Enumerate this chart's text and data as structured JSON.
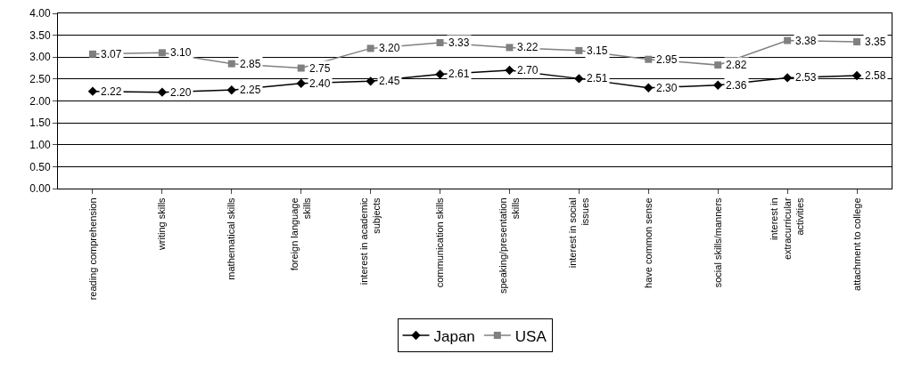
{
  "chart_data": {
    "type": "line",
    "categories": [
      "reading comprehension",
      "writing skills",
      "mathematical skills",
      "foreign language skills",
      "interest in academic subjects",
      "communication skills",
      "speaking/presentation skills",
      "interest in social issues",
      "have common sense",
      "social skills/manners",
      "interest in extracurricular activities",
      "attachment to college"
    ],
    "series": [
      {
        "name": "Japan",
        "color": "#000000",
        "marker": "diamond",
        "values": [
          2.22,
          2.2,
          2.25,
          2.4,
          2.45,
          2.61,
          2.7,
          2.51,
          2.3,
          2.36,
          2.53,
          2.58
        ],
        "value_labels": [
          "2.22",
          "2.20",
          "2.25",
          "2.40",
          "2.45",
          "2.61",
          "2.70",
          "2.51",
          "2.30",
          "2.36",
          "2.53",
          "2.58"
        ]
      },
      {
        "name": "USA",
        "color": "#808080",
        "marker": "square",
        "values": [
          3.07,
          3.1,
          2.85,
          2.75,
          3.2,
          3.33,
          3.22,
          3.15,
          2.95,
          2.82,
          3.38,
          3.35
        ],
        "value_labels": [
          "3.07",
          "3.10",
          "2.85",
          "2.75",
          "3.20",
          "3.33",
          "3.22",
          "3.15",
          "2.95",
          "2.82",
          "3.38",
          "3.35"
        ]
      }
    ],
    "ylim": [
      0,
      4
    ],
    "yticks": [
      {
        "value": 0,
        "label": "0.00"
      },
      {
        "value": 0.5,
        "label": "0.50"
      },
      {
        "value": 1,
        "label": "1.00"
      },
      {
        "value": 1.5,
        "label": "1.50"
      },
      {
        "value": 2,
        "label": "2.00"
      },
      {
        "value": 2.5,
        "label": "2.50"
      },
      {
        "value": 3,
        "label": "3.00"
      },
      {
        "value": 3.5,
        "label": "3.50"
      },
      {
        "value": 4,
        "label": "4.00"
      }
    ],
    "grid": "y",
    "legend": "bottom",
    "line_style": "solid"
  }
}
